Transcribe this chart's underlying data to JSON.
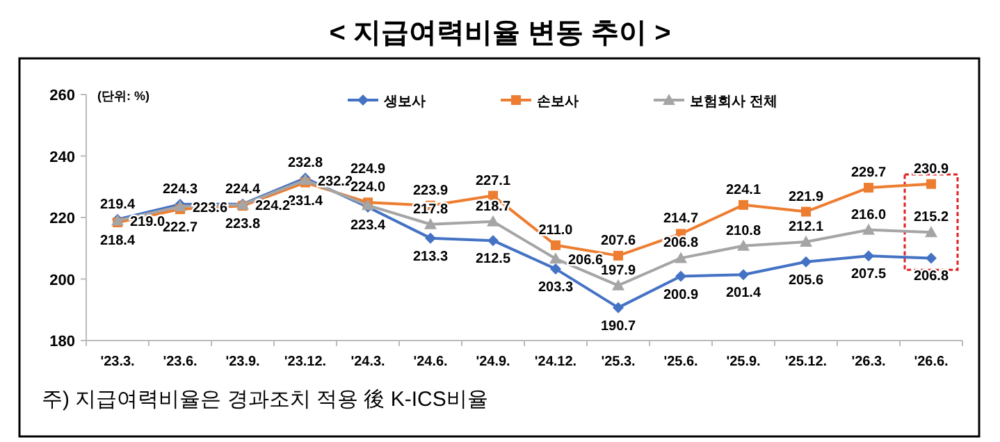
{
  "chart_data": {
    "type": "line",
    "title": "< 지급여력비율 변동 추이 >",
    "annotations": [
      "(단위: %)",
      "주) 지급여력비율은 경과조치 적용 後 K-ICS비율"
    ],
    "categories": [
      "'23.3.",
      "'23.6.",
      "'23.9.",
      "'23.12.",
      "'24.3.",
      "'24.6.",
      "'24.9.",
      "'24.12.",
      "'25.3.",
      "'25.6.",
      "'25.9.",
      "'25.12.",
      "'26.3.",
      "'26.6."
    ],
    "series": [
      {
        "name": "생보사",
        "color": "#4472c4",
        "marker": "diamond",
        "values": [
          219.4,
          224.3,
          224.4,
          232.8,
          223.4,
          213.3,
          212.5,
          203.3,
          190.7,
          200.9,
          201.4,
          205.6,
          207.5,
          206.8
        ],
        "value_labels": [
          "219.4",
          "224.3",
          "224.4",
          "232.8",
          "223.4",
          "213.3",
          "212.5",
          "203.3",
          "190.7",
          "200.9",
          "201.4",
          "205.6",
          "207.5",
          "206.8"
        ]
      },
      {
        "name": "손보사",
        "color": "#ed7d31",
        "marker": "square",
        "values": [
          218.4,
          222.7,
          223.8,
          231.4,
          224.9,
          223.9,
          227.1,
          211.0,
          207.6,
          214.7,
          224.1,
          221.9,
          229.7,
          230.9
        ],
        "value_labels": [
          "218.4",
          "222.7",
          "223.8",
          "231.4",
          "224.9",
          "223.9",
          "227.1",
          "211.0",
          "207.6",
          "214.7",
          "224.1",
          "221.9",
          "229.7",
          "230.9"
        ]
      },
      {
        "name": "보험회사 전체",
        "color": "#a5a5a5",
        "marker": "triangle",
        "values": [
          219.0,
          223.6,
          224.2,
          232.2,
          224.0,
          217.8,
          218.7,
          206.6,
          197.9,
          206.8,
          210.8,
          212.1,
          216.0,
          215.2
        ],
        "value_labels": [
          "219.0",
          "223.6",
          "224.2",
          "232.2",
          "224.0",
          "217.8",
          "218.7",
          "206.6",
          "197.9",
          "206.8",
          "210.8",
          "212.1",
          "216.0",
          "215.2"
        ]
      }
    ],
    "ylim": [
      180,
      260
    ],
    "yticks": [
      180,
      200,
      220,
      240,
      260
    ],
    "grid": false,
    "legend": "top"
  }
}
